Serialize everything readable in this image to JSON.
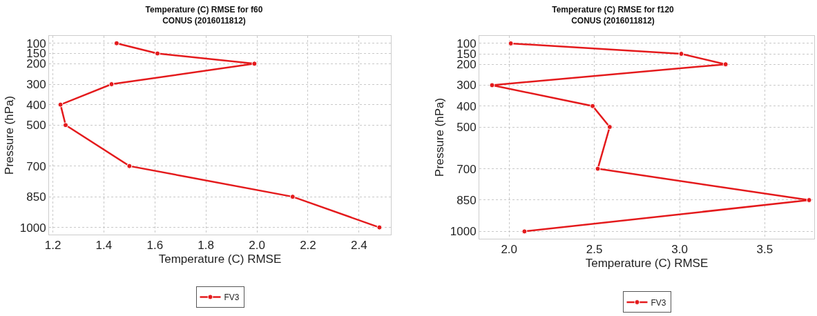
{
  "chart_data": [
    {
      "type": "line",
      "title": "Temperature (C) RMSE for f60",
      "subtitle": "CONUS (2016011812)",
      "xlabel": "Temperature (C) RMSE",
      "ylabel": "Pressure (hPa)",
      "x": [
        100,
        150,
        200,
        300,
        400,
        500,
        700,
        850,
        1000
      ],
      "series": [
        {
          "name": "FV3",
          "color": "#e41a1c",
          "values": [
            1.45,
            1.61,
            1.99,
            1.43,
            1.23,
            1.25,
            1.5,
            2.14,
            2.48
          ]
        }
      ],
      "orientation": "horizontal",
      "xlim": [
        1.185,
        2.525
      ],
      "xticks": [
        {
          "value": 1.2,
          "label": "1.2"
        },
        {
          "value": 1.4,
          "label": "1.4"
        },
        {
          "value": 1.6,
          "label": "1.6"
        },
        {
          "value": 1.8,
          "label": "1.8"
        },
        {
          "value": 2.0,
          "label": "2.0"
        },
        {
          "value": 2.2,
          "label": "2.2"
        },
        {
          "value": 2.4,
          "label": "2.4"
        }
      ],
      "ylim": [
        1035,
        64
      ],
      "yticks": [
        100,
        150,
        200,
        300,
        400,
        500,
        700,
        850,
        1000
      ],
      "grid": true,
      "legend": "bottom",
      "marker": "circle",
      "line_style": "solid"
    },
    {
      "type": "line",
      "title": "Temperature (C) RMSE for f120",
      "subtitle": "CONUS (2016011812)",
      "xlabel": "Temperature (C) RMSE",
      "ylabel": "Pressure (hPa)",
      "x": [
        100,
        150,
        200,
        300,
        400,
        500,
        700,
        850,
        1000
      ],
      "series": [
        {
          "name": "FV3",
          "color": "#e41a1c",
          "values": [
            2.01,
            3.01,
            3.27,
            1.9,
            2.49,
            2.59,
            2.52,
            3.76,
            2.09
          ]
        }
      ],
      "orientation": "horizontal",
      "xlim": [
        1.825,
        3.79
      ],
      "xticks": [
        {
          "value": 2.0,
          "label": "2.0"
        },
        {
          "value": 2.5,
          "label": "2.5"
        },
        {
          "value": 3.0,
          "label": "3.0"
        },
        {
          "value": 3.5,
          "label": "3.5"
        }
      ],
      "ylim": [
        1035,
        64
      ],
      "yticks": [
        100,
        150,
        200,
        300,
        400,
        500,
        700,
        850,
        1000
      ],
      "grid": true,
      "legend": "bottom",
      "marker": "circle",
      "line_style": "solid"
    }
  ]
}
